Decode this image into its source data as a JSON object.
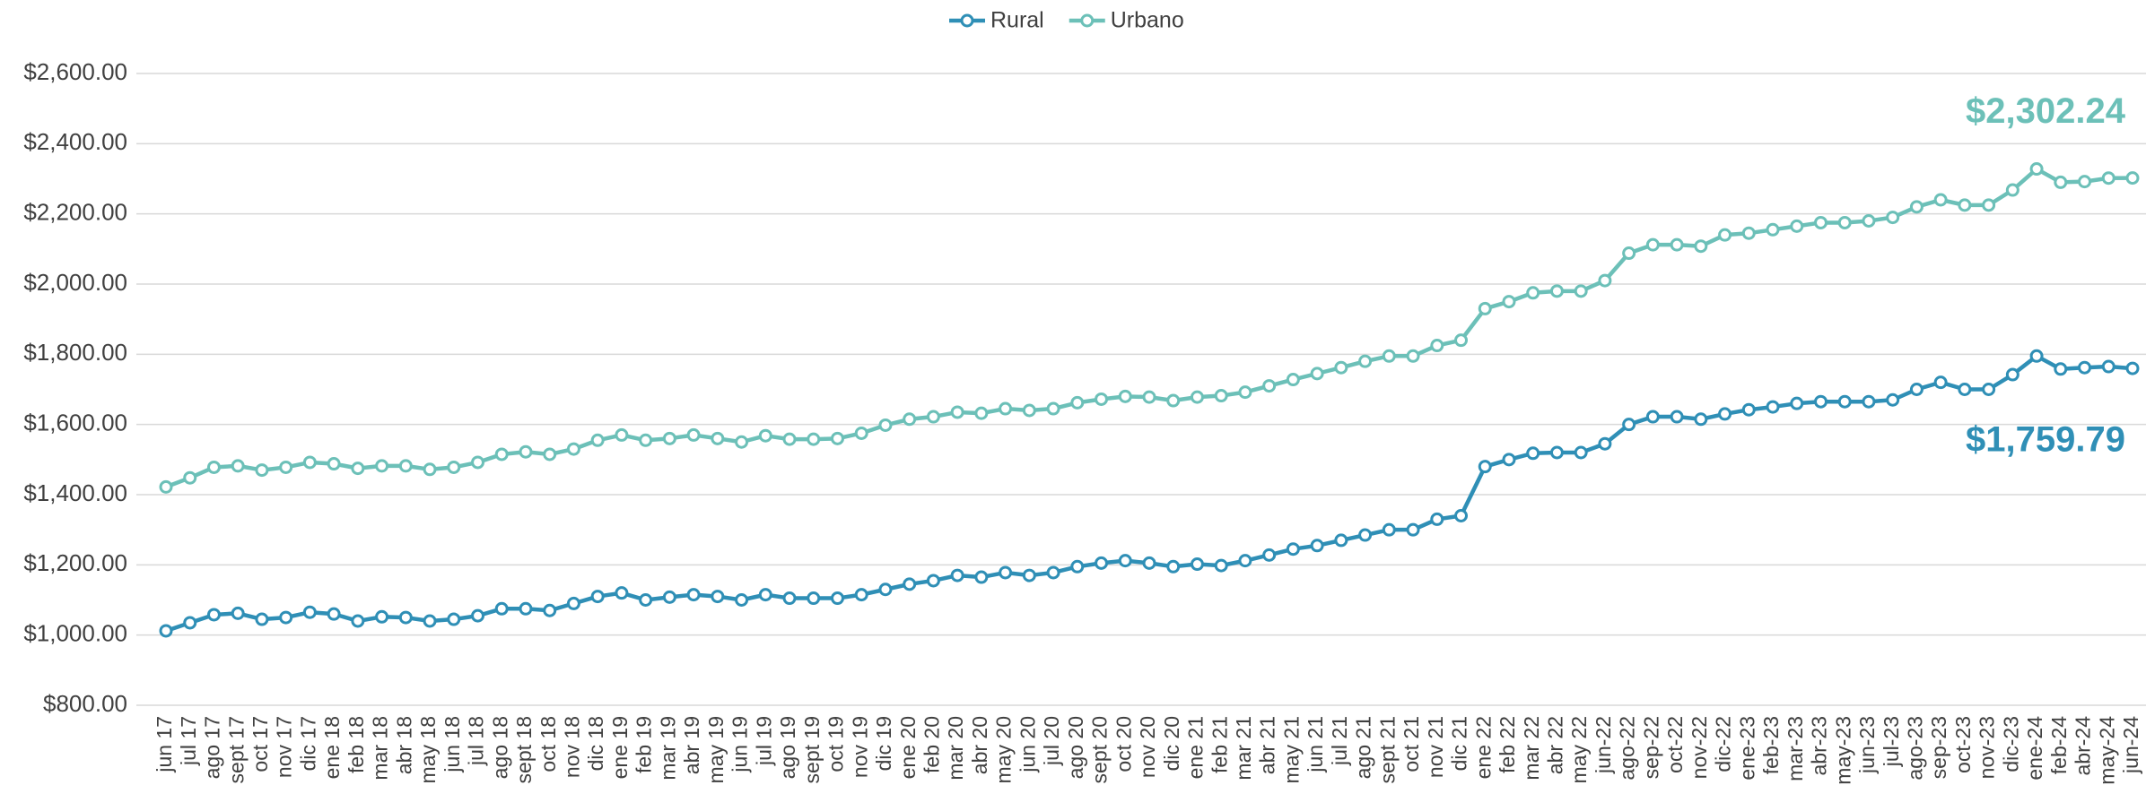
{
  "chart_data": {
    "type": "line",
    "categories": [
      "jun 17",
      "jul 17",
      "ago 17",
      "sept 17",
      "oct 17",
      "nov 17",
      "dic 17",
      "ene 18",
      "feb 18",
      "mar 18",
      "abr 18",
      "may 18",
      "jun 18",
      "jul 18",
      "ago 18",
      "sept 18",
      "oct 18",
      "nov 18",
      "dic 18",
      "ene 19",
      "feb 19",
      "mar 19",
      "abr 19",
      "may 19",
      "jun 19",
      "jul 19",
      "ago 19",
      "sept 19",
      "oct 19",
      "nov 19",
      "dic 19",
      "ene 20",
      "feb 20",
      "mar 20",
      "abr 20",
      "may 20",
      "jun 20",
      "jul 20",
      "ago 20",
      "sept 20",
      "oct 20",
      "nov 20",
      "dic 20",
      "ene 21",
      "feb 21",
      "mar 21",
      "abr 21",
      "may 21",
      "jun 21",
      "jul 21",
      "ago 21",
      "sept 21",
      "oct 21",
      "nov 21",
      "dic 21",
      "ene 22",
      "feb 22",
      "mar 22",
      "abr 22",
      "may 22",
      "jun-22",
      "ago-22",
      "sep-22",
      "oct-22",
      "nov-22",
      "dic-22",
      "ene-23",
      "feb-23",
      "mar-23",
      "abr-23",
      "may-23",
      "jun-23",
      "jul-23",
      "ago-23",
      "sep-23",
      "oct-23",
      "nov-23",
      "dic-23",
      "ene-24",
      "feb-24",
      "abr-24",
      "may-24",
      "jun-24"
    ],
    "series": [
      {
        "name": "Rural",
        "color": "#2f8fb6",
        "values": [
          1012,
          1035,
          1058,
          1062,
          1045,
          1050,
          1065,
          1060,
          1040,
          1052,
          1050,
          1040,
          1045,
          1055,
          1075,
          1075,
          1070,
          1090,
          1110,
          1120,
          1100,
          1108,
          1115,
          1110,
          1100,
          1115,
          1105,
          1105,
          1105,
          1115,
          1130,
          1145,
          1155,
          1170,
          1165,
          1178,
          1170,
          1178,
          1195,
          1205,
          1212,
          1205,
          1195,
          1202,
          1198,
          1212,
          1228,
          1245,
          1255,
          1270,
          1285,
          1300,
          1300,
          1330,
          1340,
          1480,
          1500,
          1518,
          1520,
          1520,
          1545,
          1600,
          1622,
          1622,
          1615,
          1630,
          1642,
          1650,
          1660,
          1665,
          1665,
          1665,
          1670,
          1700,
          1720,
          1700,
          1700,
          1742,
          1795,
          1758,
          1762,
          1765,
          1759.79
        ],
        "value_labels": [
          null,
          null,
          null,
          null,
          null,
          null,
          null,
          null,
          null,
          null,
          null,
          null,
          null,
          null,
          null,
          null,
          null,
          null,
          null,
          null,
          null,
          null,
          null,
          null,
          null,
          null,
          null,
          null,
          null,
          null,
          null,
          null,
          null,
          null,
          null,
          null,
          null,
          null,
          null,
          null,
          null,
          null,
          null,
          null,
          null,
          null,
          null,
          null,
          null,
          null,
          null,
          null,
          null,
          null,
          null,
          null,
          null,
          null,
          null,
          null,
          null,
          null,
          null,
          null,
          null,
          null,
          null,
          null,
          null,
          null,
          null,
          null,
          null,
          null,
          null,
          null,
          null,
          null,
          null,
          null,
          null,
          null,
          "$1,759.79"
        ]
      },
      {
        "name": "Urbano",
        "color": "#6cc0b8",
        "values": [
          1422,
          1448,
          1478,
          1482,
          1470,
          1478,
          1492,
          1488,
          1475,
          1482,
          1482,
          1472,
          1478,
          1492,
          1515,
          1522,
          1515,
          1530,
          1555,
          1570,
          1555,
          1560,
          1570,
          1560,
          1550,
          1568,
          1558,
          1558,
          1560,
          1575,
          1598,
          1615,
          1622,
          1635,
          1632,
          1645,
          1640,
          1645,
          1662,
          1672,
          1680,
          1678,
          1668,
          1678,
          1682,
          1692,
          1710,
          1728,
          1745,
          1762,
          1780,
          1795,
          1795,
          1825,
          1840,
          1930,
          1950,
          1975,
          1980,
          1980,
          2010,
          2088,
          2112,
          2112,
          2108,
          2140,
          2145,
          2155,
          2165,
          2175,
          2175,
          2180,
          2190,
          2220,
          2240,
          2225,
          2225,
          2268,
          2328,
          2290,
          2292,
          2302,
          2302.24
        ],
        "value_labels": [
          null,
          null,
          null,
          null,
          null,
          null,
          null,
          null,
          null,
          null,
          null,
          null,
          null,
          null,
          null,
          null,
          null,
          null,
          null,
          null,
          null,
          null,
          null,
          null,
          null,
          null,
          null,
          null,
          null,
          null,
          null,
          null,
          null,
          null,
          null,
          null,
          null,
          null,
          null,
          null,
          null,
          null,
          null,
          null,
          null,
          null,
          null,
          null,
          null,
          null,
          null,
          null,
          null,
          null,
          null,
          null,
          null,
          null,
          null,
          null,
          null,
          null,
          null,
          null,
          null,
          null,
          null,
          null,
          null,
          null,
          null,
          null,
          null,
          null,
          null,
          null,
          null,
          null,
          null,
          null,
          null,
          null,
          "$2,302.24"
        ]
      }
    ],
    "ylim": [
      800,
      2600
    ],
    "yticks": [
      {
        "value": 800,
        "label": "$800.00"
      },
      {
        "value": 1000,
        "label": "$1,000.00"
      },
      {
        "value": 1200,
        "label": "$1,200.00"
      },
      {
        "value": 1400,
        "label": "$1,400.00"
      },
      {
        "value": 1600,
        "label": "$1,600.00"
      },
      {
        "value": 1800,
        "label": "$1,800.00"
      },
      {
        "value": 2000,
        "label": "$2,000.00"
      },
      {
        "value": 2200,
        "label": "$2,200.00"
      },
      {
        "value": 2400,
        "label": "$2,400.00"
      },
      {
        "value": 2600,
        "label": "$2,600.00"
      }
    ],
    "grid": true,
    "legend": "top"
  }
}
